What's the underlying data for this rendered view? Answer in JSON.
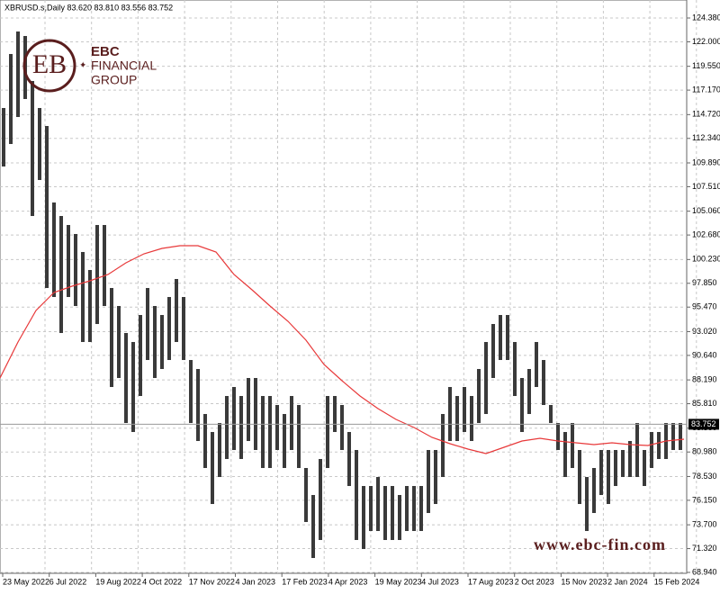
{
  "chart_data": {
    "type": "range_bar",
    "title": "XBRUSD.s,Daily  83.620 83.810 83.556 83.752",
    "logo": {
      "mark": "EB",
      "line1": "EBC",
      "line2": "FINANCIAL",
      "line3": "GROUP"
    },
    "watermark": "www.ebc-fin.com",
    "color": "#3a3a3a",
    "ma_color": "#e8393a",
    "grid": true,
    "ylim": [
      68.58,
      126.18
    ],
    "yticks": [
      {
        "value": 124.38,
        "label": "124.380"
      },
      {
        "value": 122.0,
        "label": "122.000"
      },
      {
        "value": 119.55,
        "label": "119.550"
      },
      {
        "value": 117.17,
        "label": "117.170"
      },
      {
        "value": 114.72,
        "label": "114.720"
      },
      {
        "value": 112.34,
        "label": "112.340"
      },
      {
        "value": 109.89,
        "label": "109.890"
      },
      {
        "value": 107.51,
        "label": "107.510"
      },
      {
        "value": 105.06,
        "label": "105.060"
      },
      {
        "value": 102.68,
        "label": "102.680"
      },
      {
        "value": 100.23,
        "label": "100.230"
      },
      {
        "value": 97.85,
        "label": "97.850"
      },
      {
        "value": 95.47,
        "label": "95.470"
      },
      {
        "value": 93.02,
        "label": "93.020"
      },
      {
        "value": 90.64,
        "label": "90.640"
      },
      {
        "value": 88.19,
        "label": "88.190"
      },
      {
        "value": 85.81,
        "label": "85.810"
      },
      {
        "value": 83.36,
        "label": "83.360"
      },
      {
        "value": 80.98,
        "label": "80.980"
      },
      {
        "value": 78.53,
        "label": "78.530"
      },
      {
        "value": 76.15,
        "label": "76.150"
      },
      {
        "value": 73.7,
        "label": "73.700"
      },
      {
        "value": 71.32,
        "label": "71.320"
      },
      {
        "value": 68.94,
        "label": "68.940"
      }
    ],
    "last": {
      "value": 83.752,
      "label": "83.752"
    },
    "x_labels": [
      "23 May 2022",
      "6 Jul 2022",
      "19 Aug 2022",
      "4 Oct 2022",
      "17 Nov 2022",
      "4 Jan 2023",
      "17 Feb 2023",
      "4 Apr 2023",
      "19 May 2023",
      "4 Jul 2023",
      "17 Aug 2023",
      "2 Oct 2023",
      "15 Nov 2023",
      "2 Jan 2024",
      "15 Feb 2024"
    ],
    "high": [
      115.38,
      120.78,
      123.03,
      122.58,
      118.08,
      115.38,
      113.58,
      105.93,
      104.58,
      103.68,
      102.78,
      100.98,
      99.18,
      103.68,
      103.68,
      97.38,
      95.58,
      92.88,
      91.98,
      94.68,
      97.38,
      95.58,
      94.68,
      96.48,
      98.28,
      96.48,
      90.18,
      89.28,
      84.78,
      82.98,
      83.88,
      86.58,
      87.48,
      86.58,
      88.38,
      88.38,
      86.58,
      86.58,
      85.68,
      84.78,
      86.58,
      85.68,
      79.38,
      76.68,
      80.28,
      86.58,
      86.58,
      85.68,
      82.98,
      81.18,
      77.58,
      77.58,
      78.48,
      77.58,
      77.58,
      76.68,
      77.58,
      77.58,
      77.58,
      81.18,
      81.18,
      84.78,
      87.48,
      86.58,
      87.48,
      86.58,
      89.28,
      91.98,
      93.78,
      94.68,
      94.68,
      91.98,
      88.38,
      89.28,
      91.98,
      90.18,
      85.68,
      83.88,
      82.98,
      83.88,
      81.18,
      78.48,
      79.38,
      81.18,
      81.18,
      81.18,
      81.18,
      82.08,
      83.88,
      81.18,
      82.98,
      82.98,
      83.88,
      83.88,
      83.88
    ],
    "low": [
      109.53,
      111.78,
      114.48,
      116.28,
      104.58,
      108.18,
      97.38,
      96.48,
      92.88,
      96.48,
      95.58,
      91.98,
      91.98,
      93.78,
      95.58,
      87.48,
      88.38,
      83.88,
      82.98,
      86.58,
      90.18,
      88.38,
      89.28,
      90.18,
      91.98,
      90.18,
      83.88,
      82.08,
      79.38,
      75.78,
      78.48,
      80.28,
      81.18,
      80.28,
      82.08,
      81.18,
      79.38,
      79.38,
      81.18,
      79.38,
      81.18,
      79.38,
      73.98,
      70.38,
      72.18,
      79.38,
      82.98,
      81.18,
      77.58,
      72.18,
      71.28,
      73.08,
      73.08,
      72.18,
      72.18,
      72.18,
      73.08,
      73.08,
      73.08,
      74.88,
      75.78,
      78.48,
      82.08,
      82.08,
      82.98,
      82.08,
      83.88,
      84.78,
      88.38,
      90.18,
      90.18,
      86.58,
      82.98,
      84.78,
      87.48,
      85.68,
      83.88,
      81.18,
      78.48,
      79.38,
      75.78,
      73.08,
      74.88,
      76.68,
      75.78,
      77.58,
      78.48,
      78.48,
      78.48,
      77.58,
      79.38,
      80.28,
      80.28,
      81.18,
      81.18
    ],
    "ma": [
      88.38,
      91.98,
      95.13,
      96.93,
      97.56,
      98.1,
      98.73,
      99.9,
      100.8,
      101.34,
      101.61,
      101.61,
      100.98,
      98.73,
      97.2,
      95.58,
      94.05,
      92.16,
      89.73,
      88.11,
      86.58,
      85.32,
      84.24,
      83.43,
      82.44,
      81.81,
      81.27,
      80.82,
      81.45,
      82.08,
      82.35,
      82.08,
      81.9,
      81.72,
      81.9,
      81.72,
      81.63,
      82.08,
      82.26
    ]
  }
}
